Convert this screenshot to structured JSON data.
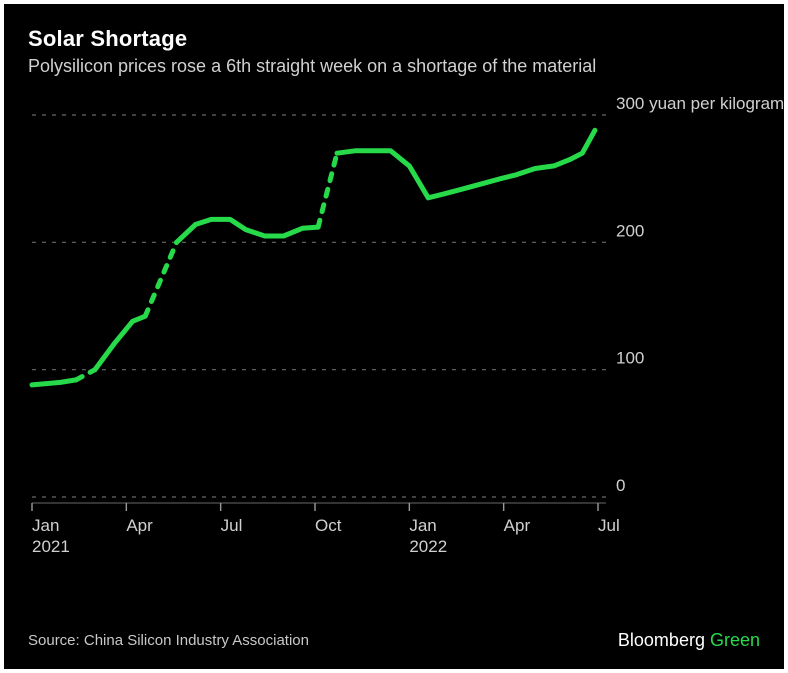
{
  "title": "Solar Shortage",
  "subtitle": "Polysilicon prices rose a 6th straight week on a shortage of the material",
  "source": "Source: China Silicon Industry Association",
  "brand_main": "Bloomberg",
  "brand_accent": "Green",
  "chart": {
    "type": "line",
    "background_color": "#000000",
    "line_color": "#27da4a",
    "line_width": 5,
    "grid_color": "#6a6a6a",
    "grid_dash": "4 6",
    "text_color": "#d0d0d0",
    "title_color": "#ffffff",
    "tick_color": "#9a9a9a",
    "ylim": [
      0,
      300
    ],
    "yticks": [
      0,
      100,
      200,
      300
    ],
    "y_unit_label": "300 yuan per kilogram",
    "label_fontsize": 17,
    "title_fontsize": 22,
    "subtitle_fontsize": 18,
    "x_start_index": 0,
    "x_end_index": 18,
    "x_ticks": [
      {
        "index": 0,
        "label_top": "Jan",
        "label_bottom": "2021"
      },
      {
        "index": 3,
        "label_top": "Apr",
        "label_bottom": ""
      },
      {
        "index": 6,
        "label_top": "Jul",
        "label_bottom": ""
      },
      {
        "index": 9,
        "label_top": "Oct",
        "label_bottom": ""
      },
      {
        "index": 12,
        "label_top": "Jan",
        "label_bottom": "2022"
      },
      {
        "index": 15,
        "label_top": "Apr",
        "label_bottom": ""
      },
      {
        "index": 18,
        "label_top": "Jul",
        "label_bottom": ""
      }
    ],
    "segments": [
      {
        "style": "solid",
        "points": [
          [
            0.0,
            88
          ],
          [
            0.9,
            90
          ],
          [
            1.4,
            92
          ]
        ]
      },
      {
        "style": "dashed",
        "points": [
          [
            1.4,
            92
          ],
          [
            2.0,
            100
          ]
        ]
      },
      {
        "style": "solid",
        "points": [
          [
            2.0,
            100
          ],
          [
            2.6,
            120
          ],
          [
            3.2,
            138
          ],
          [
            3.6,
            142
          ]
        ]
      },
      {
        "style": "dashed",
        "points": [
          [
            3.6,
            142
          ],
          [
            4.6,
            200
          ]
        ]
      },
      {
        "style": "solid",
        "points": [
          [
            4.6,
            200
          ],
          [
            5.2,
            214
          ],
          [
            5.7,
            218
          ],
          [
            6.3,
            218
          ],
          [
            6.8,
            210
          ],
          [
            7.4,
            205
          ],
          [
            8.0,
            205
          ],
          [
            8.6,
            211
          ],
          [
            9.1,
            212
          ]
        ]
      },
      {
        "style": "dashed",
        "points": [
          [
            9.1,
            212
          ],
          [
            9.7,
            270
          ]
        ]
      },
      {
        "style": "solid",
        "points": [
          [
            9.7,
            270
          ],
          [
            10.3,
            272
          ],
          [
            10.9,
            272
          ],
          [
            11.4,
            272
          ],
          [
            12.0,
            260
          ],
          [
            12.6,
            235
          ],
          [
            13.1,
            238
          ],
          [
            13.7,
            242
          ],
          [
            14.3,
            246
          ],
          [
            14.9,
            250
          ],
          [
            15.4,
            253
          ],
          [
            16.0,
            258
          ],
          [
            16.6,
            260
          ],
          [
            17.1,
            265
          ],
          [
            17.5,
            270
          ],
          [
            17.9,
            288
          ]
        ]
      }
    ]
  }
}
